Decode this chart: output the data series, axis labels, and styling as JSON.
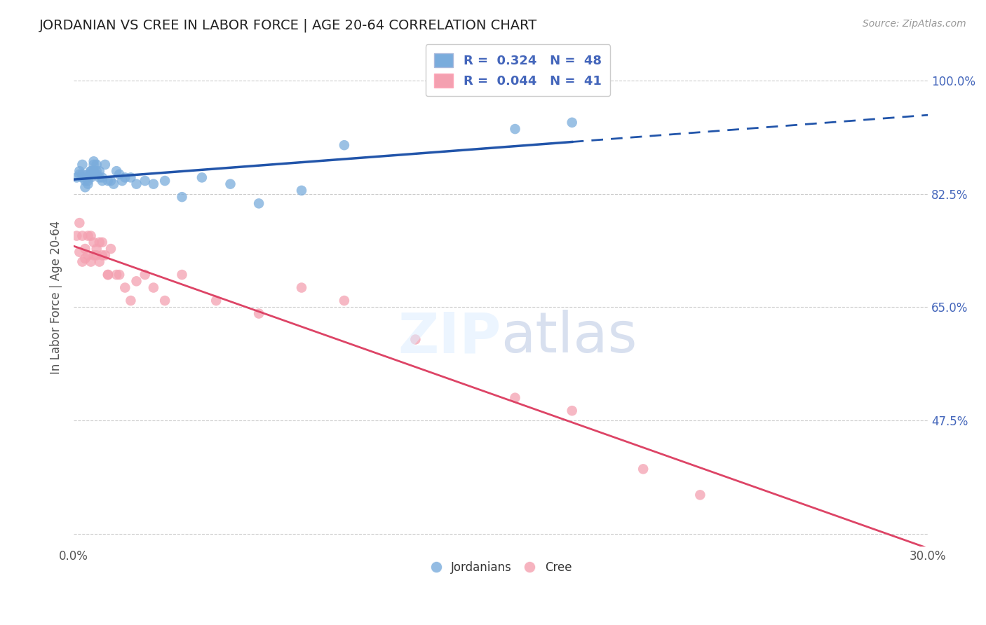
{
  "title": "JORDANIAN VS CREE IN LABOR FORCE | AGE 20-64 CORRELATION CHART",
  "source_text": "Source: ZipAtlas.com",
  "xlabel": "",
  "ylabel": "In Labor Force | Age 20-64",
  "xlim": [
    0.0,
    0.3
  ],
  "ylim": [
    0.28,
    1.05
  ],
  "xticks": [
    0.0,
    0.05,
    0.1,
    0.15,
    0.2,
    0.25,
    0.3
  ],
  "xticklabels": [
    "0.0%",
    "",
    "",
    "",
    "",
    "",
    "30.0%"
  ],
  "ytick_positions": [
    0.3,
    0.475,
    0.65,
    0.825,
    1.0
  ],
  "ytick_labels_right": [
    "",
    "47.5%",
    "65.0%",
    "82.5%",
    "100.0%"
  ],
  "legend_r1": "R =  0.324",
  "legend_n1": "N =  48",
  "legend_r2": "R =  0.044",
  "legend_n2": "N =  41",
  "blue_color": "#7AACDC",
  "pink_color": "#F4A0B0",
  "blue_line_color": "#2255AA",
  "pink_line_color": "#DD4466",
  "background_color": "#FFFFFF",
  "grid_color": "#CCCCCC",
  "title_color": "#222222",
  "axis_label_color": "#555555",
  "right_tick_color": "#4466BB",
  "jordanian_x": [
    0.001,
    0.002,
    0.002,
    0.003,
    0.003,
    0.003,
    0.004,
    0.004,
    0.004,
    0.005,
    0.005,
    0.005,
    0.006,
    0.006,
    0.006,
    0.006,
    0.007,
    0.007,
    0.007,
    0.007,
    0.008,
    0.008,
    0.008,
    0.009,
    0.009,
    0.01,
    0.01,
    0.011,
    0.012,
    0.013,
    0.014,
    0.015,
    0.016,
    0.017,
    0.018,
    0.02,
    0.022,
    0.025,
    0.028,
    0.032,
    0.038,
    0.045,
    0.055,
    0.065,
    0.08,
    0.095,
    0.155,
    0.175
  ],
  "jordanian_y": [
    0.85,
    0.86,
    0.855,
    0.87,
    0.855,
    0.85,
    0.835,
    0.85,
    0.845,
    0.84,
    0.855,
    0.845,
    0.85,
    0.86,
    0.86,
    0.855,
    0.87,
    0.875,
    0.86,
    0.855,
    0.86,
    0.87,
    0.855,
    0.86,
    0.85,
    0.85,
    0.845,
    0.87,
    0.845,
    0.845,
    0.84,
    0.86,
    0.855,
    0.845,
    0.85,
    0.85,
    0.84,
    0.845,
    0.84,
    0.845,
    0.82,
    0.85,
    0.84,
    0.81,
    0.83,
    0.9,
    0.925,
    0.935
  ],
  "cree_x": [
    0.001,
    0.002,
    0.002,
    0.003,
    0.003,
    0.004,
    0.004,
    0.005,
    0.005,
    0.006,
    0.006,
    0.007,
    0.007,
    0.008,
    0.008,
    0.009,
    0.009,
    0.01,
    0.01,
    0.011,
    0.012,
    0.012,
    0.013,
    0.015,
    0.016,
    0.018,
    0.02,
    0.022,
    0.025,
    0.028,
    0.032,
    0.038,
    0.05,
    0.065,
    0.08,
    0.095,
    0.12,
    0.155,
    0.175,
    0.2,
    0.22
  ],
  "cree_y": [
    0.76,
    0.78,
    0.735,
    0.76,
    0.72,
    0.74,
    0.725,
    0.76,
    0.73,
    0.76,
    0.72,
    0.75,
    0.73,
    0.74,
    0.73,
    0.75,
    0.72,
    0.75,
    0.73,
    0.73,
    0.7,
    0.7,
    0.74,
    0.7,
    0.7,
    0.68,
    0.66,
    0.69,
    0.7,
    0.68,
    0.66,
    0.7,
    0.66,
    0.64,
    0.68,
    0.66,
    0.6,
    0.51,
    0.49,
    0.4,
    0.36
  ],
  "blue_line_x_solid_end": 0.175,
  "blue_line_x_start": 0.0,
  "blue_line_x_end": 0.3
}
